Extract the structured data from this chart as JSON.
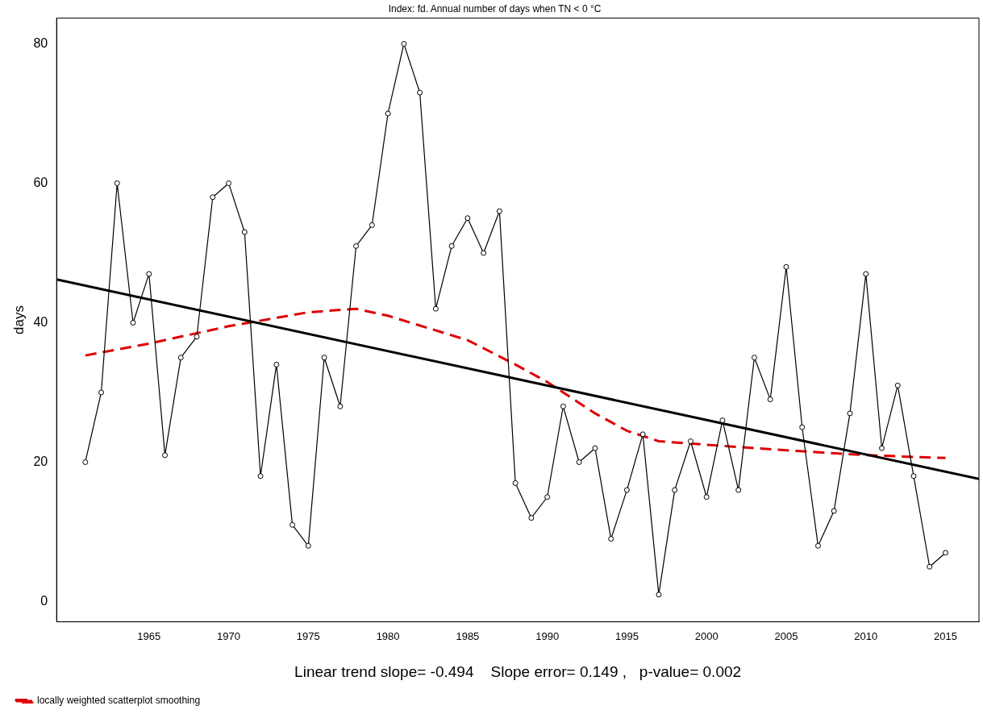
{
  "chart_data": {
    "type": "line",
    "title": "Index: fd. Annual number of days when TN < 0 °C",
    "xlabel": "Linear trend slope= -0.494    Slope error= 0.149 ,   p-value= 0.002",
    "ylabel": "days",
    "x": [
      1961,
      1962,
      1963,
      1964,
      1965,
      1966,
      1967,
      1968,
      1969,
      1970,
      1971,
      1972,
      1973,
      1974,
      1975,
      1976,
      1977,
      1978,
      1979,
      1980,
      1981,
      1982,
      1983,
      1984,
      1985,
      1986,
      1987,
      1988,
      1989,
      1990,
      1991,
      1992,
      1993,
      1994,
      1995,
      1996,
      1997,
      1998,
      1999,
      2000,
      2001,
      2002,
      2003,
      2004,
      2005,
      2006,
      2007,
      2008,
      2009,
      2010,
      2011,
      2012,
      2013,
      2014,
      2015
    ],
    "series": [
      {
        "color": "#000000",
        "marker": "circle",
        "line_style": "solid",
        "values": [
          20,
          30,
          60,
          40,
          47,
          21,
          35,
          38,
          58,
          60,
          53,
          18,
          34,
          11,
          8,
          35,
          28,
          51,
          54,
          70,
          80,
          73,
          42,
          51,
          55,
          50,
          56,
          17,
          12,
          15,
          28,
          20,
          22,
          9,
          16,
          24,
          1,
          16,
          23,
          15,
          26,
          16,
          35,
          29,
          48,
          25,
          8,
          13,
          27,
          47,
          22,
          31,
          18,
          5,
          7
        ]
      },
      {
        "type": "line",
        "color": "#000000",
        "marker": "none",
        "line_style": "solid",
        "x": [
          1959.2,
          2017.1
        ],
        "values": [
          46.2,
          17.6
        ]
      },
      {
        "type": "line",
        "name": "locally weighted scatterplot smoothing",
        "color": "#dd0000",
        "marker": "none",
        "line_style": "dashed",
        "x": [
          1961,
          1965,
          1970,
          1972,
          1975,
          1978,
          1980,
          1985,
          1988,
          1990,
          1993,
          1995,
          1997,
          2000,
          2005,
          2010,
          2015
        ],
        "values": [
          35.3,
          37,
          39.5,
          40.3,
          41.5,
          42,
          41,
          37.5,
          34,
          31.5,
          27,
          24.5,
          23,
          22.5,
          21.7,
          21,
          20.6
        ]
      }
    ],
    "xlim": [
      1959.2,
      2017.1
    ],
    "xticks": [
      1965,
      1970,
      1975,
      1980,
      1985,
      1990,
      1995,
      2000,
      2005,
      2010,
      2015
    ],
    "ylim": [
      -2.9,
      83.7
    ],
    "yticks": [
      0,
      20,
      40,
      60,
      80
    ],
    "grid": false,
    "legend": "bottom left"
  }
}
